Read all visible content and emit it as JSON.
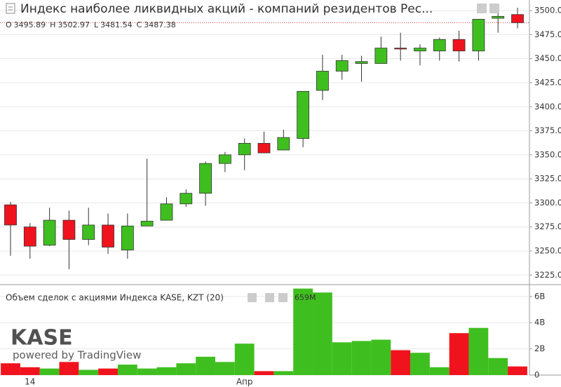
{
  "chart_data": [
    {
      "type": "candlestick",
      "title": "Индекс наиболее ликвидных акций - компаний резидентов Рес...",
      "ohlc_keys": [
        "O",
        "H",
        "L",
        "C"
      ],
      "categories": [
        null,
        "14",
        null,
        null,
        null,
        null,
        null,
        null,
        null,
        null,
        null,
        null,
        "Апр",
        null,
        null,
        null,
        null,
        null,
        null,
        null,
        null,
        null,
        null,
        null,
        null,
        null,
        null
      ],
      "open": [
        3298,
        3275,
        3256,
        3282,
        3262,
        3277,
        3251,
        3276,
        3282,
        3299,
        3310,
        3341,
        3350,
        3362,
        3355,
        3367,
        3417,
        3437,
        3445,
        3445,
        3461,
        3458,
        3458,
        3470,
        3458,
        3492,
        3495.89
      ],
      "high": [
        3301,
        3279,
        3295,
        3292,
        3295,
        3289,
        3289,
        3346,
        3306,
        3314,
        3343,
        3353,
        3367,
        3374,
        3376,
        3416,
        3454,
        3454,
        3453,
        3473,
        3477,
        3465,
        3472,
        3479,
        3491,
        3498,
        3502.97
      ],
      "low": [
        3245,
        3242,
        3255,
        3231,
        3256,
        3247,
        3242,
        3276,
        3282,
        3296,
        3297,
        3332,
        3334,
        3352,
        3355,
        3358,
        3407,
        3428,
        3426,
        3445,
        3448,
        3443,
        3448,
        3447,
        3448,
        3477,
        3481.54
      ],
      "close": [
        3277,
        3255,
        3282,
        3262,
        3277,
        3254,
        3276,
        3281,
        3299,
        3310,
        3341,
        3350,
        3362,
        3352,
        3368,
        3416,
        3437,
        3448,
        3447,
        3461,
        3460,
        3461,
        3470,
        3458,
        3491,
        3494,
        3487.38
      ],
      "up_color": "#3fbf1f",
      "down_color": "#f0131e",
      "ylim": [
        3215,
        3511
      ],
      "yticks": [
        {
          "value": 3225,
          "label": "3225.0"
        },
        {
          "value": 3250,
          "label": "3250.0"
        },
        {
          "value": 3275,
          "label": "3275.0"
        },
        {
          "value": 3300,
          "label": "3300.0"
        },
        {
          "value": 3325,
          "label": "3325.0"
        },
        {
          "value": 3350,
          "label": "3350.0"
        },
        {
          "value": 3375,
          "label": "3375.0"
        },
        {
          "value": 3400,
          "label": "3400.0"
        },
        {
          "value": 3425,
          "label": "3425.0"
        },
        {
          "value": 3450,
          "label": "3450.0"
        },
        {
          "value": 3475,
          "label": "3475.0"
        },
        {
          "value": 3500,
          "label": "3500.0"
        }
      ],
      "grid": true,
      "logo_text": "KASE",
      "powered_by": "powered by TradingView"
    },
    {
      "type": "bar",
      "title": "Объем сделок с акциями Индекса KASE, KZT (20)",
      "values": [
        900000000,
        600000000,
        500000000,
        1000000000,
        400000000,
        500000000,
        800000000,
        500000000,
        600000000,
        900000000,
        1400000000,
        1000000000,
        2400000000,
        300000000,
        300000000,
        6600000000,
        6300000000,
        2500000000,
        2600000000,
        2700000000,
        1900000000,
        1700000000,
        600000000,
        3200000000,
        3600000000,
        1300000000,
        659000000
      ],
      "value_labels": [
        null,
        null,
        null,
        null,
        null,
        null,
        null,
        null,
        null,
        null,
        null,
        null,
        null,
        null,
        null,
        null,
        null,
        null,
        null,
        null,
        null,
        null,
        null,
        null,
        null,
        null,
        "659M"
      ],
      "ylim": [
        0,
        6900000000
      ],
      "yticks": [
        0,
        {
          "value": 2000000000,
          "label": "2B"
        },
        {
          "value": 4000000000,
          "label": "4B"
        },
        {
          "value": 6000000000,
          "label": "6B"
        }
      ],
      "grid": true
    }
  ]
}
